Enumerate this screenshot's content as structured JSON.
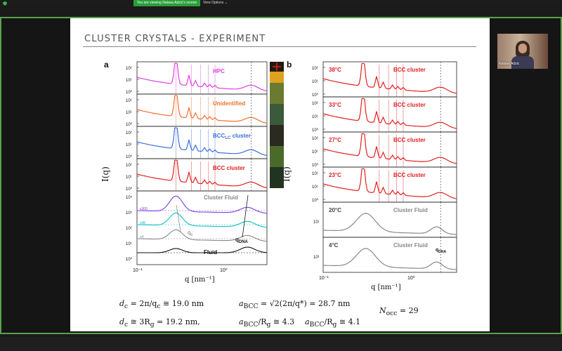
{
  "topbar": {
    "viewing_text": "You are viewing Natasa Adzic's screen",
    "view_options": "View Options ⌄",
    "accent": "#2b9e3a"
  },
  "slide": {
    "title": "CLUSTER CRYSTALS - EXPERIMENT",
    "panel_a_label": "a",
    "panel_b_label": "b",
    "ylabel": "I(q)",
    "xlabel": "q [nm⁻¹]",
    "xtick_a": [
      "10⁻¹",
      "10⁰"
    ],
    "xtick_b": [
      "10⁻¹",
      "10⁰"
    ],
    "panel_a": [
      {
        "label": "HPC",
        "color": "#e040e0"
      },
      {
        "label": "Unidentified",
        "color": "#f07030"
      },
      {
        "label": "BCC",
        "sub": "LC",
        "suffix": " cluster",
        "color": "#3a6ee0"
      },
      {
        "label": "BCC cluster",
        "color": "#e02020"
      }
    ],
    "panel_a_bottom": {
      "label": "Cluster Fluid",
      "fluid_label": "Fluid",
      "qc": "q",
      "qc_sub": "c",
      "qdna": "q",
      "qdna_sub": "DNA",
      "scale_labels": [
        "x300",
        "x48",
        "x4"
      ]
    },
    "panel_b": [
      {
        "temp": "38°C",
        "label": "BCC cluster"
      },
      {
        "temp": "33°C",
        "label": "BCC cluster"
      },
      {
        "temp": "27°C",
        "label": "BCC cluster"
      },
      {
        "temp": "23°C",
        "label": "BCC cluster"
      },
      {
        "temp": "20°C",
        "label": "Cluster Fluid"
      },
      {
        "temp": "4°C",
        "label": "Cluster Fluid",
        "qdna": "q",
        "qdna_sub": "DNA"
      }
    ],
    "ytick_small": [
      "10²",
      "10¹",
      "10⁰"
    ],
    "ytick_bottom_a": [
      "10⁴",
      "10³",
      "10²",
      "10¹",
      "10⁰"
    ],
    "ytick_bottom_b": [
      "10¹"
    ],
    "equations": {
      "dc": "d",
      "dc_sub": "c",
      "dc_rhs": " = 2π/q",
      "dc_rhs_sub": "c",
      "dc_val": " ≅ 19.0 nm",
      "dc2_rhs": " ≅ 3R",
      "dc2_rhs_sub": "g",
      "dc2_val": " = 19.2 nm,",
      "abcc": "a",
      "abcc_sub": "BCC",
      "abcc_rhs": " = √2(2π/q*) = 28.7 nm",
      "ratio1": "/R",
      "ratio1_sub": "g",
      "ratio1_val": " ≅ 4.3",
      "ratio2_val": " ≅ 4.1",
      "nocc": "N",
      "nocc_sub": "occ",
      "nocc_val": " = 29"
    }
  },
  "video": {
    "name": "Natasa Adzic"
  }
}
